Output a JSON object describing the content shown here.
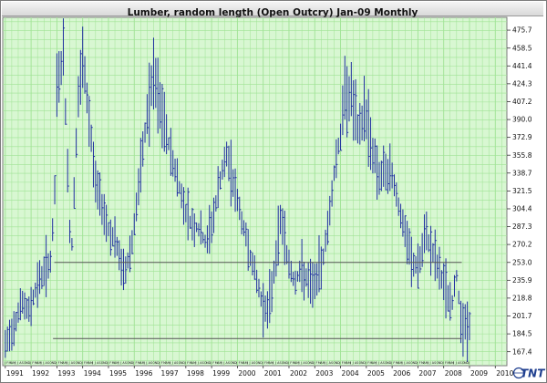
{
  "title": "Lumber, random length (Open Outcry) Jan-09  Monthly",
  "logo": {
    "text": "TNT",
    "color": "#1f3f8f"
  },
  "colors": {
    "plot_background": "#d8f7d2",
    "grid": "#9fe394",
    "bars": "#1f2f9f",
    "lines": "#555555"
  },
  "chart_data": {
    "type": "bar",
    "bar_style": "hlc",
    "title": "Lumber, random length (Open Outcry) Jan-09  Monthly",
    "xlabel": "",
    "ylabel": "",
    "x_tick_labels": [
      "1991",
      "1992",
      "1993",
      "1994",
      "1995",
      "1996",
      "1997",
      "1998",
      "1999",
      "2000",
      "2001",
      "2002",
      "2003",
      "2004",
      "2005",
      "2006",
      "2007",
      "2008",
      "2009",
      "2010"
    ],
    "x_range": [
      1990.9,
      2010.45
    ],
    "y_tick_labels": [
      "167.4",
      "184.5",
      "201.7",
      "218.8",
      "235.9",
      "253.0",
      "270.2",
      "287.3",
      "304.4",
      "321.5",
      "338.7",
      "355.8",
      "372.9",
      "390.0",
      "407.2",
      "424.3",
      "441.4",
      "458.5",
      "475.7"
    ],
    "ylim": [
      154,
      488
    ],
    "grid": true,
    "month_letters": "JFMAMJJASOND",
    "horizontal_lines": [
      {
        "y": 253.0,
        "x_start": 1992.9,
        "x_end": 2008.7
      },
      {
        "y": 180.0,
        "x_start": 1992.85,
        "x_end": 2008.7
      }
    ],
    "anchors": [
      [
        1991.0,
        172
      ],
      [
        1991.3,
        190
      ],
      [
        1991.6,
        215
      ],
      [
        1991.9,
        205
      ],
      [
        1992.2,
        230
      ],
      [
        1992.5,
        245
      ],
      [
        1992.75,
        255
      ],
      [
        1992.9,
        300
      ],
      [
        1993.0,
        420
      ],
      [
        1993.25,
        455
      ],
      [
        1993.55,
        250
      ],
      [
        1993.8,
        400
      ],
      [
        1994.0,
        445
      ],
      [
        1994.25,
        390
      ],
      [
        1994.5,
        330
      ],
      [
        1994.8,
        305
      ],
      [
        1995.0,
        285
      ],
      [
        1995.3,
        270
      ],
      [
        1995.6,
        240
      ],
      [
        1995.9,
        270
      ],
      [
        1996.2,
        330
      ],
      [
        1996.5,
        395
      ],
      [
        1996.75,
        430
      ],
      [
        1997.0,
        400
      ],
      [
        1997.3,
        370
      ],
      [
        1997.6,
        340
      ],
      [
        1997.9,
        310
      ],
      [
        1998.2,
        290
      ],
      [
        1998.5,
        285
      ],
      [
        1998.8,
        270
      ],
      [
        1999.1,
        300
      ],
      [
        1999.35,
        335
      ],
      [
        1999.6,
        355
      ],
      [
        1999.85,
        330
      ],
      [
        2000.1,
        300
      ],
      [
        2000.4,
        270
      ],
      [
        2000.7,
        240
      ],
      [
        2000.95,
        215
      ],
      [
        2001.2,
        205
      ],
      [
        2001.45,
        250
      ],
      [
        2001.7,
        300
      ],
      [
        2001.95,
        255
      ],
      [
        2002.2,
        235
      ],
      [
        2002.5,
        245
      ],
      [
        2002.8,
        230
      ],
      [
        2003.05,
        235
      ],
      [
        2003.3,
        255
      ],
      [
        2003.55,
        295
      ],
      [
        2003.8,
        350
      ],
      [
        2004.0,
        375
      ],
      [
        2004.2,
        420
      ],
      [
        2004.45,
        410
      ],
      [
        2004.7,
        375
      ],
      [
        2004.95,
        400
      ],
      [
        2005.2,
        365
      ],
      [
        2005.5,
        335
      ],
      [
        2005.8,
        340
      ],
      [
        2006.05,
        335
      ],
      [
        2006.3,
        300
      ],
      [
        2006.55,
        275
      ],
      [
        2006.8,
        250
      ],
      [
        2007.05,
        250
      ],
      [
        2007.3,
        280
      ],
      [
        2007.55,
        265
      ],
      [
        2007.8,
        245
      ],
      [
        2008.05,
        230
      ],
      [
        2008.3,
        210
      ],
      [
        2008.5,
        240
      ],
      [
        2008.65,
        205
      ],
      [
        2008.72,
        192
      ]
    ],
    "bar_count": 217,
    "range_seed": 7
  }
}
